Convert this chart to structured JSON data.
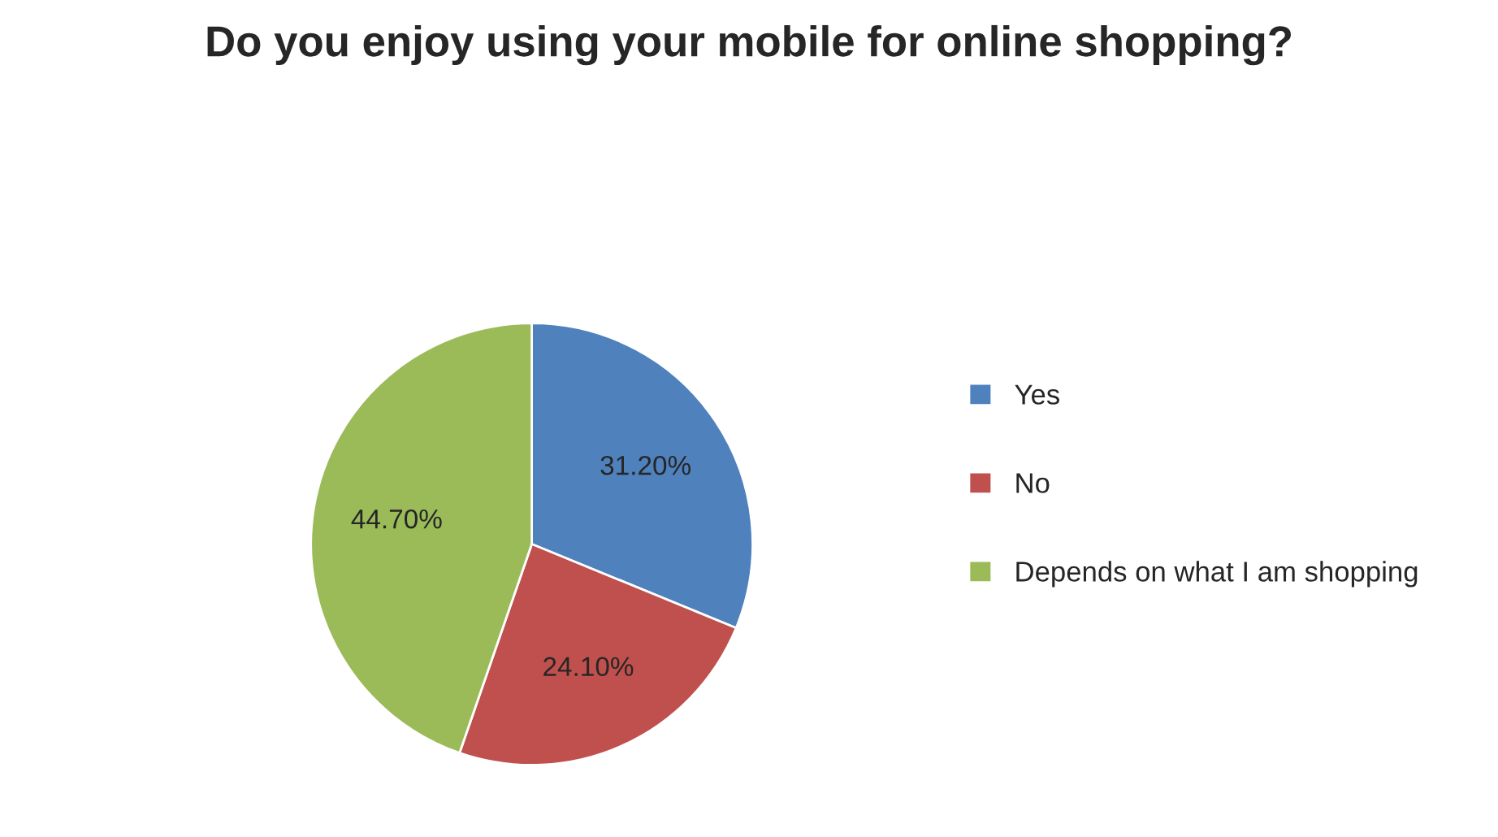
{
  "chart_data": {
    "type": "pie",
    "title": "Do you enjoy using your mobile for online shopping?",
    "categories": [
      "Yes",
      "No",
      "Depends on what I am shopping"
    ],
    "values": [
      31.2,
      24.1,
      44.7
    ],
    "colors": [
      "#4f81bd",
      "#c0504d",
      "#9bbb59"
    ],
    "value_labels": [
      "31.20%",
      "24.10%",
      "44.70%"
    ],
    "legend": "right"
  }
}
